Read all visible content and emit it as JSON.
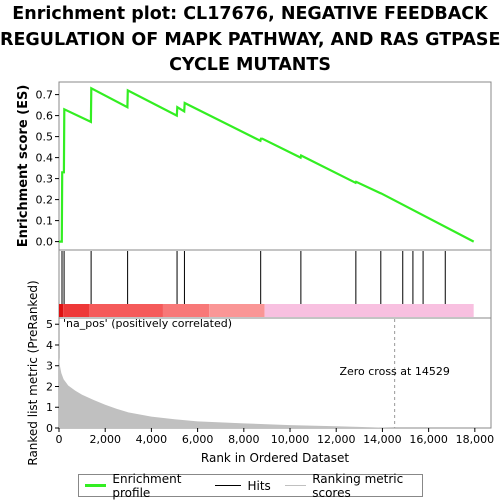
{
  "title_lines": [
    "Enrichment plot: CL17676, NEGATIVE FEEDBACK",
    "REGULATION OF MAPK PATHWAY, AND RAS GTPASE",
    "CYCLE MUTANTS"
  ],
  "colors": {
    "es_line": "#33ee22",
    "hits": "#000000",
    "metric_fill": "#c0c0c0",
    "pos_label": "#e83030",
    "zero_line": "#999999"
  },
  "chart_data": [
    {
      "type": "line",
      "name": "enrichment-profile",
      "ylabel": "Enrichment score (ES)",
      "xlim": [
        0,
        18700
      ],
      "ylim": [
        -0.04,
        0.76
      ],
      "yticks": [
        "0.0",
        "0.1",
        "0.2",
        "0.3",
        "0.4",
        "0.5",
        "0.6",
        "0.7"
      ],
      "x": [
        0,
        120,
        140,
        210,
        230,
        1380,
        1400,
        2960,
        2980,
        5100,
        5120,
        5420,
        5440,
        8720,
        8740,
        8800,
        10460,
        10480,
        12840,
        12860,
        13920,
        13940,
        17950
      ],
      "y": [
        0.0,
        0.0,
        0.33,
        0.33,
        0.63,
        0.57,
        0.73,
        0.64,
        0.72,
        0.6,
        0.64,
        0.62,
        0.66,
        0.48,
        0.49,
        0.49,
        0.4,
        0.41,
        0.28,
        0.285,
        0.23,
        0.23,
        0.0
      ]
    },
    {
      "type": "heatmap",
      "name": "hits-and-rank-bar",
      "hits": [
        130,
        220,
        1390,
        2970,
        5110,
        5430,
        8730,
        10470,
        12850,
        13930,
        14880,
        15320,
        15760,
        16720
      ],
      "segments": [
        {
          "from": 0,
          "to": 180,
          "color": "#dd1111"
        },
        {
          "from": 180,
          "to": 1300,
          "color": "#ee3838"
        },
        {
          "from": 1300,
          "to": 4500,
          "color": "#f55a5a"
        },
        {
          "from": 4500,
          "to": 6500,
          "color": "#f87878"
        },
        {
          "from": 6500,
          "to": 8900,
          "color": "#fa9696"
        },
        {
          "from": 8900,
          "to": 17950,
          "color": "#f8c0e0"
        }
      ]
    },
    {
      "type": "area",
      "name": "ranked-list-metric",
      "xlabel": "Rank in Ordered Dataset",
      "ylabel": "Ranked list metric (PreRanked)",
      "xlim": [
        0,
        18700
      ],
      "ylim": [
        0,
        5.3
      ],
      "yticks": [
        "0",
        "1",
        "2",
        "3",
        "4",
        "5"
      ],
      "xticks": [
        "0",
        "2,000",
        "4,000",
        "6,000",
        "8,000",
        "10,000",
        "12,000",
        "14,000",
        "16,000",
        "18,000"
      ],
      "x": [
        0,
        40,
        100,
        200,
        400,
        700,
        1000,
        1500,
        2000,
        2500,
        3000,
        4000,
        5000,
        6000,
        8000,
        10000,
        12000,
        13500,
        14529,
        17950
      ],
      "y": [
        3.4,
        3.0,
        2.65,
        2.35,
        2.05,
        1.8,
        1.6,
        1.35,
        1.12,
        0.92,
        0.75,
        0.55,
        0.42,
        0.32,
        0.22,
        0.14,
        0.08,
        0.04,
        0.0,
        0.0
      ],
      "zero_cross_x": 14529,
      "zero_cross_label": "Zero cross at 14529",
      "pos_label": "'na_pos' (positively correlated)"
    }
  ],
  "legend": {
    "items": [
      {
        "label": "Enrichment profile",
        "color": "#33ee22"
      },
      {
        "label": "Hits",
        "color": "#000000"
      },
      {
        "label": "Ranking metric scores",
        "color": "#c0c0c0"
      }
    ]
  }
}
